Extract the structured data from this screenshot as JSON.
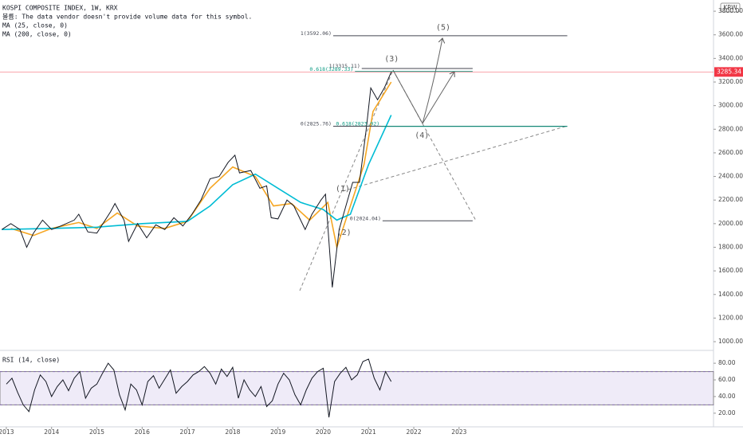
{
  "chart_data": [
    {
      "type": "line",
      "title": "KOSPI COMPOSITE INDEX, 1W, KRX",
      "subtitle": "볼륨: The data vendor doesn't provide volume data for this symbol.",
      "currency": "KRW",
      "color": "#131722",
      "x": [
        2012.9,
        2013.1,
        2013.3,
        2013.45,
        2013.6,
        2013.8,
        2014.0,
        2014.2,
        2014.5,
        2014.6,
        2014.8,
        2015.0,
        2015.3,
        2015.4,
        2015.6,
        2015.7,
        2015.9,
        2016.1,
        2016.3,
        2016.5,
        2016.7,
        2016.9,
        2017.1,
        2017.3,
        2017.5,
        2017.7,
        2017.9,
        2018.05,
        2018.15,
        2018.4,
        2018.6,
        2018.75,
        2018.85,
        2019.0,
        2019.2,
        2019.35,
        2019.6,
        2019.75,
        2019.95,
        2020.05,
        2020.2,
        2020.35,
        2020.5,
        2020.65,
        2020.8,
        2020.95,
        2021.05,
        2021.2,
        2021.35,
        2021.5
      ],
      "values": [
        1950,
        2000,
        1950,
        1800,
        1920,
        2030,
        1950,
        1980,
        2030,
        2080,
        1930,
        1920,
        2100,
        2170,
        2030,
        1850,
        2000,
        1880,
        1990,
        1950,
        2050,
        1980,
        2080,
        2200,
        2380,
        2400,
        2520,
        2580,
        2430,
        2450,
        2300,
        2320,
        2050,
        2040,
        2200,
        2150,
        1950,
        2080,
        2200,
        2250,
        1460,
        1950,
        2150,
        2350,
        2350,
        2800,
        3150,
        3050,
        3150,
        3285.34
      ],
      "series": [
        {
          "name": "MA (25, close, 0)",
          "color": "#f5a623",
          "x": [
            2013.1,
            2013.6,
            2014.0,
            2014.6,
            2015.0,
            2015.45,
            2015.9,
            2016.5,
            2017.0,
            2017.5,
            2018.0,
            2018.5,
            2018.9,
            2019.3,
            2019.7,
            2020.1,
            2020.3,
            2020.6,
            2020.9,
            2021.1,
            2021.5
          ],
          "values": [
            1960,
            1900,
            1960,
            2010,
            1960,
            2090,
            1980,
            1960,
            2020,
            2300,
            2480,
            2400,
            2150,
            2170,
            2030,
            2180,
            1800,
            2150,
            2500,
            2950,
            3200
          ]
        },
        {
          "name": "MA (200, close, 0)",
          "color": "#00bcd4",
          "x": [
            2012.9,
            2014.0,
            2015.0,
            2016.0,
            2017.0,
            2017.5,
            2018.0,
            2018.5,
            2019.0,
            2019.5,
            2020.0,
            2020.3,
            2020.6,
            2021.0,
            2021.5
          ],
          "values": [
            1950,
            1960,
            1970,
            2000,
            2020,
            2150,
            2330,
            2420,
            2300,
            2180,
            2120,
            2030,
            2080,
            2500,
            2920
          ]
        }
      ],
      "xlim": [
        2012.86,
        2028.62
      ],
      "ylim": [
        926,
        3895
      ],
      "yticks": [
        {
          "value": 1000,
          "label": "1000.00"
        },
        {
          "value": 1200,
          "label": "1200.00"
        },
        {
          "value": 1400,
          "label": "1400.00"
        },
        {
          "value": 1600,
          "label": "1600.00"
        },
        {
          "value": 1800,
          "label": "1800.00"
        },
        {
          "value": 2000,
          "label": "2000.00"
        },
        {
          "value": 2200,
          "label": "2200.00"
        },
        {
          "value": 2400,
          "label": "2400.00"
        },
        {
          "value": 2600,
          "label": "2600.00"
        },
        {
          "value": 2800,
          "label": "2800.00"
        },
        {
          "value": 3000,
          "label": "3000.00"
        },
        {
          "value": 3200,
          "label": "3200.00"
        },
        {
          "value": 3400,
          "label": "3400.00"
        },
        {
          "value": 3600,
          "label": "3600.00"
        },
        {
          "value": 3800,
          "label": "3800.00"
        }
      ],
      "last_price": {
        "value": 3285.34,
        "label": "3285.34",
        "color": "#f23645"
      },
      "levels": [
        {
          "label": "1(3592.06)",
          "value": 3592.06,
          "start": 2020.22,
          "end": 2025.39,
          "color": "#434651"
        },
        {
          "label": "1(3315.11)",
          "value": 3315.11,
          "start": 2020.85,
          "end": 2023.3,
          "color": "#434651"
        },
        {
          "label": "0.618(3289.33)",
          "value": 3289.33,
          "start": 2020.7,
          "end": 2023.3,
          "color": "#089981"
        },
        {
          "label": "0(2825.76)",
          "value": 2825.76,
          "start": 2020.22,
          "end": 2025.39,
          "color": "#434651"
        },
        {
          "label": "0.618(2823.92)",
          "value": 2823.92,
          "start": 2021.28,
          "end": 2025.39,
          "color": "#089981"
        },
        {
          "label": "0(2024.04)",
          "value": 2024.04,
          "start": 2021.31,
          "end": 2023.3,
          "color": "#434651"
        }
      ],
      "waves": [
        {
          "label": "(1)",
          "x": 2020.43,
          "y": 2296
        },
        {
          "label": "(2)",
          "x": 2020.46,
          "y": 1924
        },
        {
          "label": "(3)",
          "x": 2021.51,
          "y": 3397
        },
        {
          "label": "(4)",
          "x": 2022.18,
          "y": 2749
        },
        {
          "label": "(5)",
          "x": 2022.65,
          "y": 3661
        }
      ]
    },
    {
      "type": "line",
      "title": "RSI (14, close)",
      "color": "#131722",
      "x": [
        2013.0,
        2013.125,
        2013.25,
        2013.375,
        2013.5,
        2013.625,
        2013.75,
        2013.875,
        2014.0,
        2014.125,
        2014.25,
        2014.375,
        2014.5,
        2014.625,
        2014.75,
        2014.875,
        2015.0,
        2015.125,
        2015.25,
        2015.375,
        2015.5,
        2015.625,
        2015.75,
        2015.875,
        2016.0,
        2016.125,
        2016.25,
        2016.375,
        2016.5,
        2016.625,
        2016.75,
        2016.875,
        2017.0,
        2017.125,
        2017.25,
        2017.375,
        2017.5,
        2017.625,
        2017.75,
        2017.875,
        2018.0,
        2018.125,
        2018.25,
        2018.375,
        2018.5,
        2018.625,
        2018.75,
        2018.875,
        2019.0,
        2019.125,
        2019.25,
        2019.375,
        2019.5,
        2019.625,
        2019.75,
        2019.875,
        2020.0,
        2020.125,
        2020.25,
        2020.375,
        2020.5,
        2020.625,
        2020.75,
        2020.875,
        2021.0,
        2021.125,
        2021.25,
        2021.375,
        2021.5
      ],
      "values": [
        55,
        62,
        45,
        30,
        22,
        48,
        66,
        58,
        40,
        52,
        60,
        47,
        62,
        70,
        38,
        50,
        55,
        68,
        80,
        72,
        42,
        24,
        55,
        48,
        30,
        58,
        65,
        50,
        61,
        72,
        44,
        52,
        58,
        66,
        70,
        76,
        68,
        55,
        73,
        64,
        75,
        38,
        60,
        48,
        40,
        52,
        28,
        35,
        55,
        68,
        60,
        42,
        30,
        48,
        62,
        70,
        74,
        15,
        58,
        68,
        75,
        60,
        66,
        82,
        85,
        62,
        48,
        70,
        58
      ],
      "band": [
        30,
        70
      ],
      "band_color": "#7e57c2",
      "xlim": [
        2012.86,
        2028.62
      ],
      "ylim": [
        3.6,
        93.5
      ],
      "xticks": [
        2013,
        2014,
        2015,
        2016,
        2017,
        2018,
        2019,
        2020,
        2021,
        2022,
        2023
      ],
      "yticks": [
        {
          "value": 20,
          "label": "20.00"
        },
        {
          "value": 40,
          "label": "40.00"
        },
        {
          "value": 60,
          "label": "60.00"
        },
        {
          "value": 80,
          "label": "80.00"
        }
      ]
    }
  ]
}
